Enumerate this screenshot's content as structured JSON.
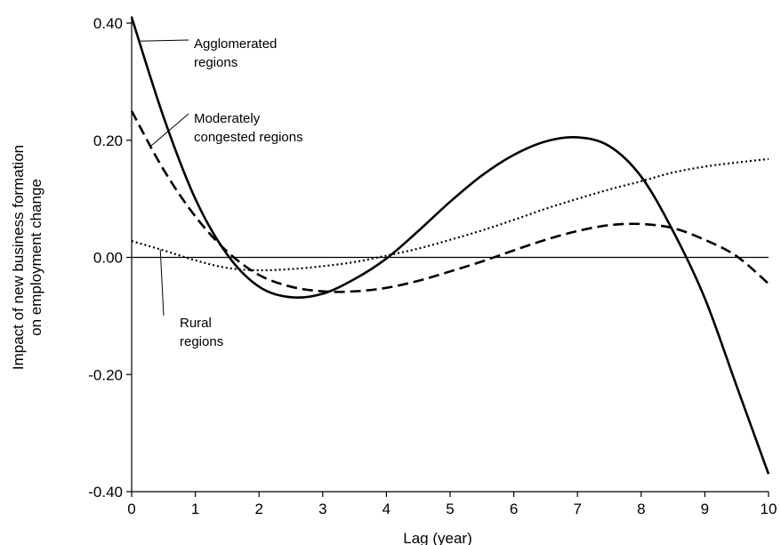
{
  "chart_data": {
    "type": "line",
    "title": "",
    "xlabel": "Lag (year)",
    "ylabel_lines": [
      "Impact of new business formation",
      "on employment change"
    ],
    "xlim": [
      0,
      10
    ],
    "ylim": [
      -0.4,
      0.4
    ],
    "xticks": [
      0,
      1,
      2,
      3,
      4,
      5,
      6,
      7,
      8,
      9,
      10
    ],
    "xtick_labels": [
      "0",
      "1",
      "2",
      "3",
      "4",
      "5",
      "6",
      "7",
      "8",
      "9",
      "10"
    ],
    "yticks": [
      0.4,
      0.2,
      0.0,
      -0.2,
      -0.4
    ],
    "ytick_labels": [
      "0.40",
      "0.20",
      "0.00",
      "-0.20",
      "-0.40"
    ],
    "grid": false,
    "legend": "none",
    "series": [
      {
        "style": "solid",
        "color": "#000000",
        "x": [
          0,
          0.5,
          1,
          1.5,
          2,
          2.5,
          3,
          3.5,
          4,
          4.5,
          5,
          5.5,
          6,
          6.5,
          7,
          7.5,
          8,
          8.5,
          9,
          9.5,
          10
        ],
        "y": [
          0.41,
          0.24,
          0.1,
          0.005,
          -0.05,
          -0.068,
          -0.062,
          -0.037,
          -0.002,
          0.045,
          0.095,
          0.14,
          0.175,
          0.198,
          0.205,
          0.19,
          0.138,
          0.045,
          -0.07,
          -0.22,
          -0.37
        ]
      },
      {
        "style": "dashed",
        "color": "#000000",
        "x": [
          0,
          0.5,
          1,
          1.5,
          2,
          2.5,
          3,
          3.5,
          4,
          4.5,
          5,
          5.5,
          6,
          6.5,
          7,
          7.5,
          8,
          8.5,
          9,
          9.5,
          10
        ],
        "y": [
          0.25,
          0.15,
          0.07,
          0.01,
          -0.03,
          -0.05,
          -0.058,
          -0.058,
          -0.052,
          -0.04,
          -0.024,
          -0.007,
          0.012,
          0.03,
          0.045,
          0.055,
          0.057,
          0.05,
          0.03,
          0.002,
          -0.045
        ]
      },
      {
        "style": "dotted",
        "color": "#000000",
        "x": [
          0,
          0.5,
          1,
          1.5,
          2,
          2.5,
          3,
          3.5,
          4,
          4.5,
          5,
          5.5,
          6,
          6.5,
          7,
          7.5,
          8,
          8.5,
          9,
          9.5,
          10
        ],
        "y": [
          0.028,
          0.012,
          -0.005,
          -0.018,
          -0.022,
          -0.02,
          -0.015,
          -0.008,
          0.003,
          0.015,
          0.03,
          0.046,
          0.064,
          0.083,
          0.1,
          0.116,
          0.13,
          0.145,
          0.155,
          0.162,
          0.168
        ]
      }
    ],
    "annotations": [
      {
        "lines": [
          "Agglomerated",
          "regions"
        ],
        "series_index": 0,
        "point_x": 0.12
      },
      {
        "lines": [
          "Moderately",
          "congested regions"
        ],
        "series_index": 1,
        "point_x": 0.3
      },
      {
        "lines": [
          "Rural",
          "regions"
        ],
        "series_index": 2,
        "point_x": 0.45
      }
    ]
  }
}
